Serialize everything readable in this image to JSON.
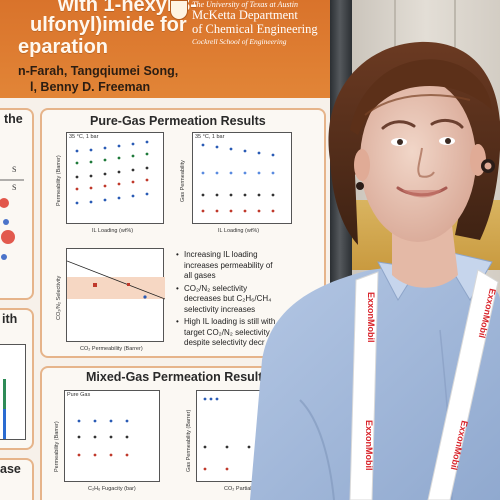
{
  "poster": {
    "title_lines": [
      "with 1-hexyl-3-",
      "ulfonyl)imide for",
      "eparation"
    ],
    "authors_line1": "n-Farah, Tangqiumei Song,",
    "authors_line2": "l, Benny D. Freeman",
    "university": "The University of Texas at Austin",
    "dept_line1": "McKetta Department",
    "dept_line2": "of Chemical Engineering",
    "school": "Cockrell School of Engineering",
    "left_fragment_top": "the",
    "left_fragment_mid": "ith",
    "left_fragment_bottom": "ase",
    "pure_gas_title": "Pure-Gas Permeation Results",
    "mixed_gas_title": "Mixed-Gas Permeation Results",
    "bullets": [
      "Increasing IL loading increases permeability of all gases",
      "CO₂/N₂ selectivity decreases but C₂H₆/CH₄ selectivity increases",
      "High IL loading is still with target CO₂/N₂ selectivity despite selectivity decr"
    ],
    "plot1_ylabel": "Permeability (Barrer)",
    "plot1_xlabel": "IL Loading (wt%)",
    "plot2_ylabel": "Gas Permeability",
    "plot2_xlabel": "IL Loading (wt%)",
    "plot3_ylabel": "CO₂/N₂ Selectivity",
    "plot3_xlabel": "CO₂ Permeability (Barrer)",
    "plot4_ylabel": "Permeability (Barrer)",
    "plot4_xlabel": "C₂H₆ Fugacity (bar)",
    "plot5_ylabel": "Gas Permeability (Barrer)",
    "plot5_xlabel": "CO₂ Partial Press",
    "plot_note": "35 °C, 1 bar",
    "legend_pure": "Pure Gas"
  },
  "lanyard": {
    "brand": "ExxonMobil"
  },
  "colors": {
    "poster_orange": "#e0782f",
    "section_border": "#e6b48a",
    "shirt": "#a9bedd",
    "lanyard_red": "#d8232a"
  }
}
